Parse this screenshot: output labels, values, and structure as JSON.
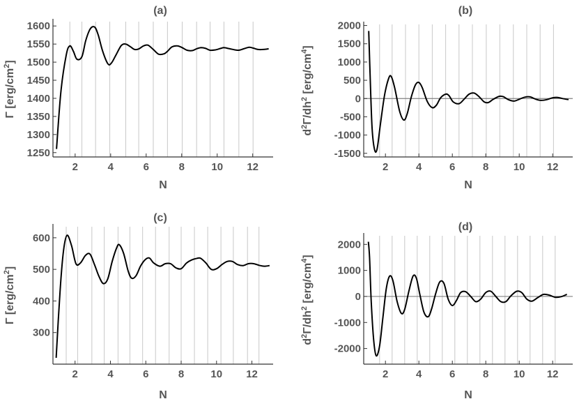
{
  "chart_data": [
    {
      "id": "a",
      "type": "line",
      "title": "(a)",
      "xlabel": "N",
      "ylabel": "Γ [erg/cm²]",
      "xlim": [
        0.75,
        13.15
      ],
      "ylim": [
        1238,
        1612
      ],
      "xticks": [
        2,
        4,
        6,
        8,
        10,
        12
      ],
      "yticks": [
        1250,
        1300,
        1350,
        1400,
        1450,
        1500,
        1550,
        1600
      ],
      "vgrid": [
        1.7,
        2.38,
        3.15,
        3.95,
        4.85,
        5.58,
        6.4,
        7.2,
        8.03,
        8.84,
        9.6,
        10.38,
        11.22,
        12.02
      ],
      "zero_line": false,
      "series": [
        {
          "x": [
            0.95,
            1.2,
            1.5,
            1.7,
            1.9,
            2.1,
            2.38,
            2.6,
            2.85,
            3.1,
            3.3,
            3.55,
            3.85,
            4.05,
            4.3,
            4.6,
            4.85,
            5.1,
            5.35,
            5.6,
            5.85,
            6.1,
            6.4,
            6.7,
            7.0,
            7.2,
            7.45,
            7.75,
            8.03,
            8.3,
            8.6,
            8.84,
            9.1,
            9.35,
            9.6,
            9.9,
            10.2,
            10.38,
            10.7,
            11.0,
            11.22,
            11.5,
            11.8,
            12.02,
            12.3,
            12.6,
            12.9
          ],
          "y": [
            1260,
            1420,
            1520,
            1545,
            1530,
            1508,
            1515,
            1560,
            1592,
            1597,
            1575,
            1530,
            1495,
            1498,
            1520,
            1546,
            1550,
            1543,
            1535,
            1537,
            1545,
            1547,
            1535,
            1522,
            1523,
            1530,
            1542,
            1545,
            1540,
            1533,
            1532,
            1537,
            1540,
            1538,
            1533,
            1534,
            1538,
            1540,
            1537,
            1534,
            1533,
            1537,
            1541,
            1539,
            1535,
            1535,
            1537
          ]
        }
      ]
    },
    {
      "id": "b",
      "type": "line",
      "title": "(b)",
      "xlabel": "N",
      "ylabel": "d²Γ/dh² [erg/cm⁴]",
      "xlim": [
        0.7,
        13.2
      ],
      "ylim": [
        -1600,
        2030
      ],
      "xticks": [
        2,
        4,
        6,
        8,
        10,
        12
      ],
      "yticks": [
        -1500,
        -1000,
        -500,
        0,
        500,
        1000,
        1500,
        2000
      ],
      "vgrid": [
        1.65,
        2.4,
        3.2,
        4.0,
        4.8,
        5.6,
        6.4,
        7.2,
        8.03,
        8.84,
        9.65,
        10.45,
        11.25,
        12.05
      ],
      "zero_line": true,
      "series": [
        {
          "x": [
            1.0,
            1.08,
            1.2,
            1.35,
            1.5,
            1.7,
            1.95,
            2.2,
            2.35,
            2.55,
            2.85,
            3.1,
            3.3,
            3.55,
            3.8,
            4.0,
            4.2,
            4.5,
            4.8,
            5.05,
            5.3,
            5.6,
            5.8,
            6.05,
            6.4,
            6.7,
            7.0,
            7.3,
            7.6,
            7.9,
            8.15,
            8.45,
            8.8,
            9.05,
            9.35,
            9.7,
            10.05,
            10.35,
            10.65,
            11.0,
            11.3,
            11.65,
            12.0,
            12.3,
            12.6,
            12.95
          ],
          "y": [
            1850,
            700,
            -800,
            -1400,
            -1380,
            -700,
            100,
            560,
            600,
            300,
            -350,
            -590,
            -420,
            50,
            380,
            440,
            300,
            -80,
            -250,
            -180,
            20,
            120,
            80,
            -90,
            -140,
            -20,
            120,
            150,
            50,
            -90,
            -110,
            -20,
            60,
            50,
            -30,
            -70,
            -10,
            40,
            45,
            -20,
            -50,
            -30,
            20,
            30,
            0,
            -30
          ]
        }
      ]
    },
    {
      "id": "c",
      "type": "line",
      "title": "(c)",
      "xlabel": "N",
      "ylabel": "Γ [erg/cm²]",
      "xlim": [
        0.75,
        13.2
      ],
      "ylim": [
        200,
        635
      ],
      "xticks": [
        2,
        4,
        6,
        8,
        10,
        12
      ],
      "yticks": [
        300,
        400,
        500,
        600
      ],
      "vgrid": [
        1.5,
        2.15,
        2.95,
        3.65,
        4.43,
        5.1,
        5.82,
        6.55,
        7.32,
        8.0,
        8.75,
        9.5,
        10.25,
        10.95,
        11.75,
        12.4
      ],
      "zero_line": false,
      "series": [
        {
          "x": [
            0.93,
            1.15,
            1.35,
            1.55,
            1.8,
            2.05,
            2.3,
            2.6,
            2.85,
            3.1,
            3.35,
            3.6,
            3.85,
            4.1,
            4.35,
            4.5,
            4.75,
            5.0,
            5.2,
            5.45,
            5.7,
            5.95,
            6.2,
            6.45,
            6.8,
            7.1,
            7.4,
            7.7,
            8.0,
            8.3,
            8.6,
            8.9,
            9.1,
            9.4,
            9.7,
            10.0,
            10.3,
            10.6,
            10.9,
            11.2,
            11.5,
            11.8,
            12.1,
            12.4,
            12.7,
            13.0
          ],
          "y": [
            220,
            430,
            560,
            608,
            575,
            518,
            520,
            545,
            548,
            515,
            478,
            455,
            470,
            525,
            568,
            578,
            550,
            495,
            472,
            480,
            510,
            530,
            536,
            520,
            510,
            518,
            518,
            505,
            502,
            520,
            530,
            535,
            535,
            520,
            500,
            502,
            515,
            525,
            525,
            515,
            512,
            518,
            518,
            513,
            510,
            512
          ]
        }
      ]
    },
    {
      "id": "d",
      "type": "line",
      "title": "(d)",
      "xlabel": "N",
      "ylabel": "d²Γ/dh² [erg/cm⁴]",
      "xlim": [
        0.7,
        13.2
      ],
      "ylim": [
        -2600,
        2330
      ],
      "xticks": [
        2,
        4,
        6,
        8,
        10,
        12
      ],
      "yticks": [
        -2000,
        -1000,
        0,
        1000,
        2000
      ],
      "vgrid": [
        1.65,
        2.4,
        3.15,
        3.9,
        4.65,
        5.4,
        6.15,
        6.9,
        7.65,
        8.4,
        9.15,
        9.9,
        10.65,
        11.4,
        12.15
      ],
      "zero_line": true,
      "series": [
        {
          "x": [
            0.98,
            1.05,
            1.15,
            1.3,
            1.45,
            1.65,
            1.85,
            2.05,
            2.25,
            2.45,
            2.7,
            2.95,
            3.15,
            3.4,
            3.65,
            3.85,
            4.05,
            4.3,
            4.55,
            4.75,
            5.0,
            5.25,
            5.5,
            5.75,
            6.0,
            6.25,
            6.5,
            6.8,
            7.1,
            7.4,
            7.7,
            8.0,
            8.3,
            8.6,
            8.9,
            9.2,
            9.5,
            9.85,
            10.15,
            10.45,
            10.75,
            11.1,
            11.45,
            11.8,
            12.15,
            12.5,
            12.85
          ],
          "y": [
            2100,
            1500,
            -200,
            -1700,
            -2280,
            -1900,
            -800,
            300,
            780,
            600,
            -200,
            -650,
            -500,
            200,
            780,
            700,
            100,
            -600,
            -780,
            -500,
            100,
            560,
            500,
            -100,
            -350,
            -150,
            150,
            180,
            0,
            -200,
            -100,
            150,
            200,
            0,
            -200,
            -200,
            20,
            200,
            150,
            -100,
            -180,
            -50,
            80,
            50,
            -30,
            -10,
            80
          ]
        }
      ]
    }
  ]
}
